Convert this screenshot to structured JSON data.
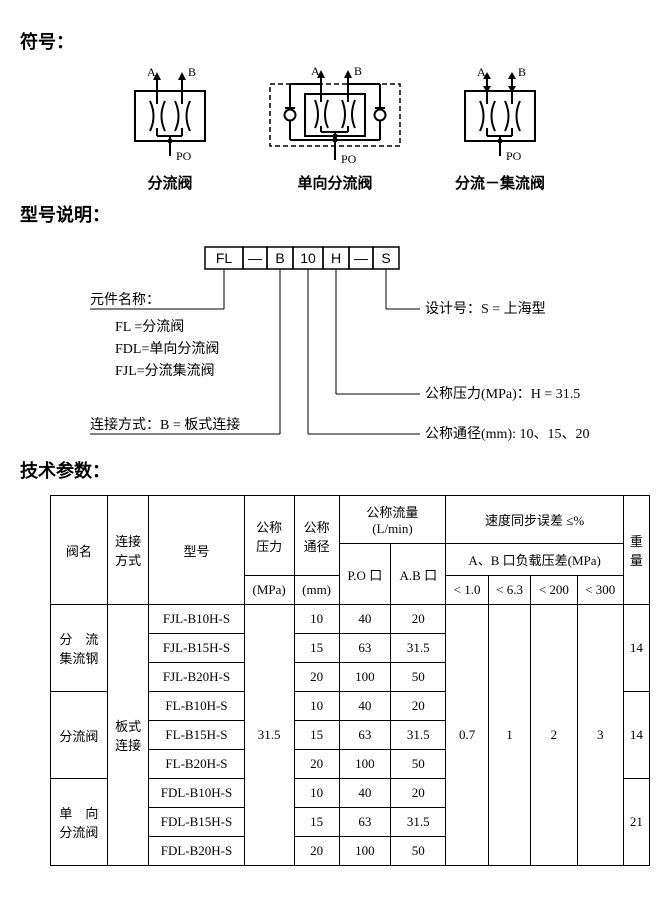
{
  "headings": {
    "symbols": "符号：",
    "model": "型号说明：",
    "params": "技术参数："
  },
  "symbols": {
    "labels": {
      "a": "A",
      "b": "B",
      "po": "PO"
    },
    "names": [
      "分流阀",
      "单向分流阀",
      "分流－集流阀"
    ]
  },
  "model": {
    "boxes": [
      "FL",
      "—",
      "B",
      "10",
      "H",
      "—",
      "S"
    ],
    "left_label": "元件名称：",
    "left_lines": [
      "FL =分流阀",
      "FDL=单向分流阀",
      "FJL=分流集流阀"
    ],
    "left_conn": "连接方式：B = 板式连接",
    "right_design": "设计号：S = 上海型",
    "right_pressure": "公称压力(MPa)：H = 31.5",
    "right_diam": "公称通径(mm): 10、15、20"
  },
  "table": {
    "hdr": {
      "name": "阀名",
      "conn": "连接\n方式",
      "model": "型号",
      "pressure": "公称\n压力",
      "pressure_unit": "(MPa)",
      "diam": "公称\n通径",
      "diam_unit": "(mm)",
      "flow": "公称流量\n(L/min)",
      "flow_po": "P.O 口",
      "flow_ab": "A.B 口",
      "speed": "速度同步误差 ≤%",
      "speed_sub": "A、B 口负载压差(MPa)",
      "s1": "< 1.0",
      "s2": "< 6.3",
      "s3": "< 200",
      "s4": "< 300",
      "weight": "重\n量"
    },
    "groups": [
      {
        "name": "分　流\n集流钢",
        "weight": "14",
        "rows": [
          {
            "model": "FJL-B10H-S",
            "diam": "10",
            "po": "40",
            "ab": "20"
          },
          {
            "model": "FJL-B15H-S",
            "diam": "15",
            "po": "63",
            "ab": "31.5"
          },
          {
            "model": "FJL-B20H-S",
            "diam": "20",
            "po": "100",
            "ab": "50"
          }
        ]
      },
      {
        "name": "分流阀",
        "weight": "14",
        "rows": [
          {
            "model": "FL-B10H-S",
            "diam": "10",
            "po": "40",
            "ab": "20"
          },
          {
            "model": "FL-B15H-S",
            "diam": "15",
            "po": "63",
            "ab": "31.5"
          },
          {
            "model": "FL-B20H-S",
            "diam": "20",
            "po": "100",
            "ab": "50"
          }
        ]
      },
      {
        "name": "单　向\n分流阀",
        "weight": "21",
        "rows": [
          {
            "model": "FDL-B10H-S",
            "diam": "10",
            "po": "40",
            "ab": "20"
          },
          {
            "model": "FDL-B15H-S",
            "diam": "15",
            "po": "63",
            "ab": "31.5"
          },
          {
            "model": "FDL-B20H-S",
            "diam": "20",
            "po": "100",
            "ab": "50"
          }
        ]
      }
    ],
    "span": {
      "conn": "板式\n连接",
      "pressure": "31.5",
      "s1": "0.7",
      "s2": "1",
      "s3": "2",
      "s4": "3"
    }
  }
}
